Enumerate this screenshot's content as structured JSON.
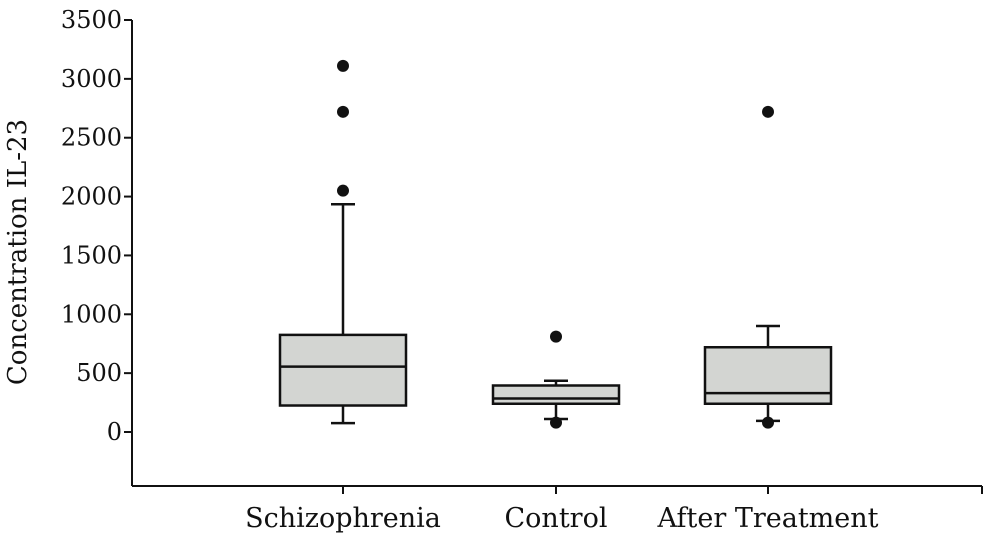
{
  "chart_data": {
    "type": "box",
    "ylabel": "Concentration IL-23",
    "xlabel": "",
    "ylim": [
      -450,
      3500
    ],
    "yticks": [
      0,
      500,
      1000,
      1500,
      2000,
      2500,
      3000,
      3500
    ],
    "ytick_labels": [
      "0",
      "500",
      "1000",
      "1500",
      "2000",
      "2500",
      "3000",
      "3500"
    ],
    "categories": [
      "Schizophrenia",
      "Control",
      "After Treatment"
    ],
    "box_color": "#d3d5d2",
    "line_color": "#111111",
    "boxes": [
      {
        "category": "Schizophrenia",
        "whisker_low": 75,
        "q1": 225,
        "median": 555,
        "q3": 825,
        "whisker_high": 1935,
        "outliers": [
          2050,
          2720,
          3110
        ]
      },
      {
        "category": "Control",
        "whisker_low": 110,
        "q1": 240,
        "median": 285,
        "q3": 395,
        "whisker_high": 435,
        "outliers": [
          80,
          810
        ]
      },
      {
        "category": "After Treatment",
        "whisker_low": 95,
        "q1": 240,
        "median": 330,
        "q3": 720,
        "whisker_high": 900,
        "outliers": [
          80,
          2720
        ]
      }
    ]
  }
}
